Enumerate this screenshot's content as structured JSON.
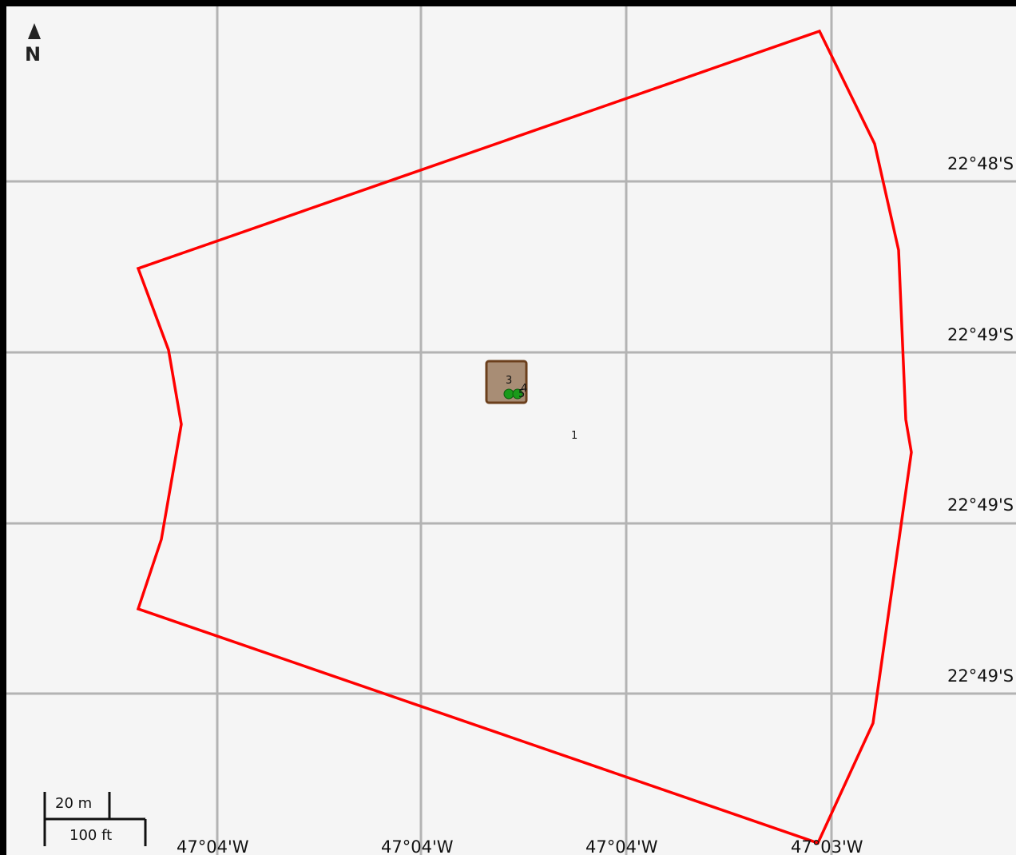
{
  "map": {
    "north_label": "N",
    "latitude_labels": [
      "22°48'S",
      "22°49'S",
      "22°49'S",
      "22°49'S"
    ],
    "longitude_labels": [
      "47°04'W",
      "47°04'W",
      "47°04'W",
      "47°03'W"
    ],
    "scale_bar": {
      "metric_label": "20 m",
      "imperial_label": "100 ft"
    },
    "features": {
      "plot_label": "3",
      "marker_label": "4",
      "point_5_label": "5",
      "point_1_label": "1"
    },
    "colors": {
      "background": "#f5f5f5",
      "grid": "#b3b3b3",
      "boundary": "#ff0000",
      "plot_fill": "#a88d75",
      "plot_border": "#6b3f1c",
      "marker": "#1a9a1a"
    }
  }
}
